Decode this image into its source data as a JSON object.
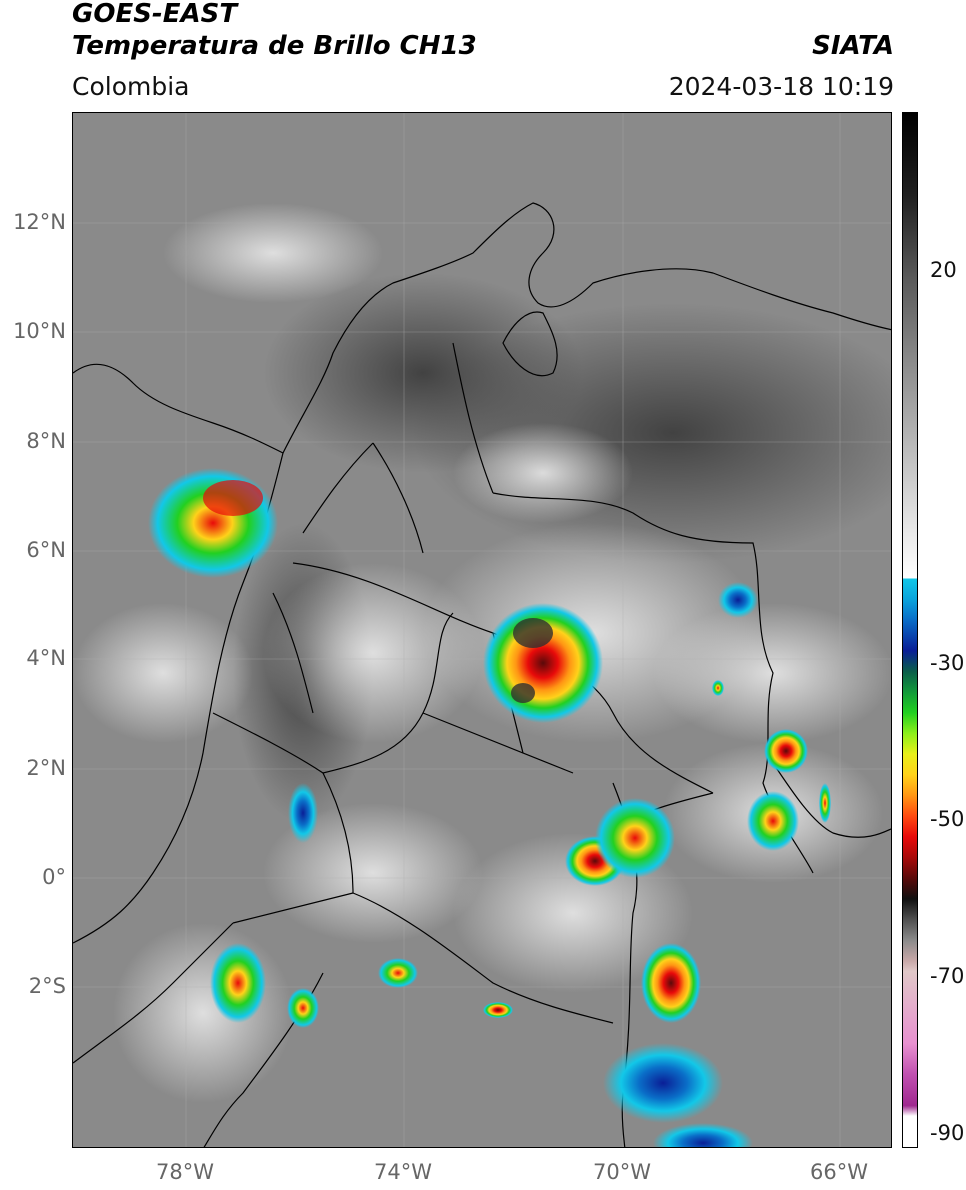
{
  "header": {
    "satellite": "GOES-EAST",
    "product": "Temperatura de Brillo CH13",
    "agency": "SIATA",
    "region": "Colombia",
    "timestamp": "2024-03-18 10:19"
  },
  "axes": {
    "lat_ticks": [
      "12°N",
      "10°N",
      "8°N",
      "6°N",
      "4°N",
      "2°N",
      "0°",
      "2°S"
    ],
    "lon_ticks": [
      "78°W",
      "74°W",
      "70°W",
      "66°W"
    ]
  },
  "colorbar": {
    "ticks": [
      "20",
      "-30",
      "-50",
      "-70",
      "-90"
    ]
  },
  "colors": {
    "background_gray": "#8a8a8a",
    "cold_cloud_red": "#e80a0a",
    "cold_cloud_green": "#22d020",
    "cold_cloud_yellow": "#ffd21a",
    "cold_cloud_blue": "#0a6ec8"
  }
}
